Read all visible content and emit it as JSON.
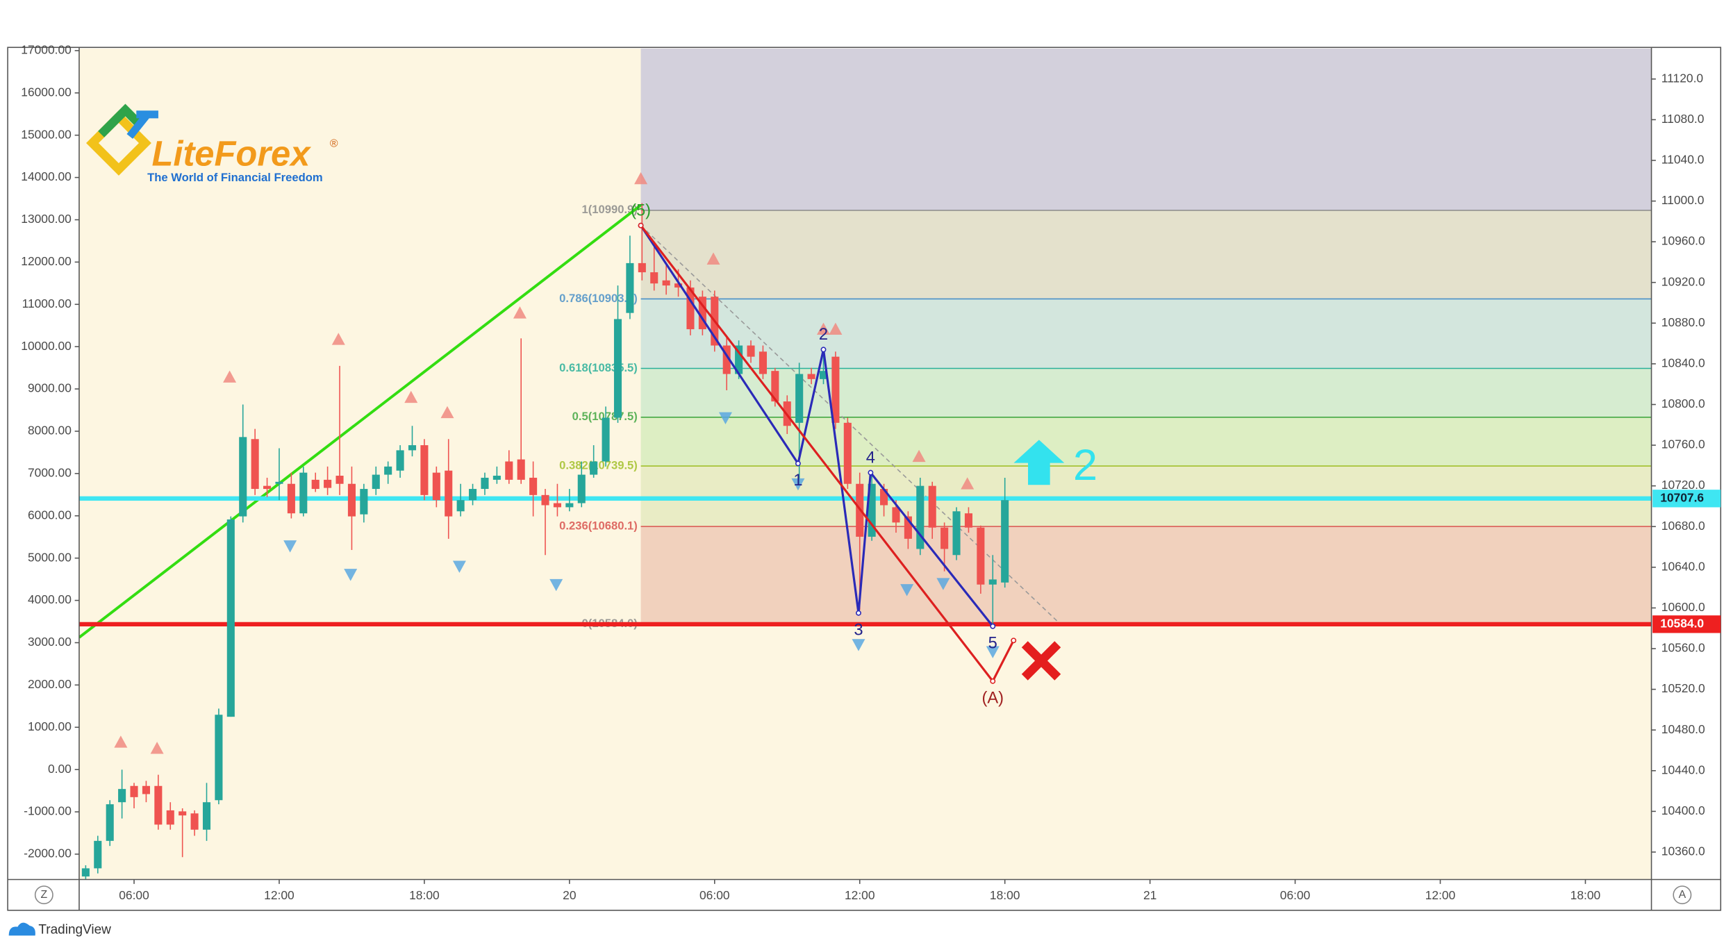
{
  "chart_data": {
    "type": "candlestick",
    "xlim": [
      3.73,
      68.73
    ],
    "xticks": [
      {
        "value": 6,
        "label": "06:00"
      },
      {
        "value": 12,
        "label": "12:00"
      },
      {
        "value": 18,
        "label": "18:00"
      },
      {
        "value": 24,
        "label": "20"
      },
      {
        "value": 30,
        "label": "06:00"
      },
      {
        "value": 36,
        "label": "12:00"
      },
      {
        "value": 42,
        "label": "18:00"
      },
      {
        "value": 48,
        "label": "21"
      },
      {
        "value": 54,
        "label": "06:00"
      },
      {
        "value": 60,
        "label": "12:00"
      },
      {
        "value": 66,
        "label": "18:00"
      }
    ],
    "ylim": [
      -2600,
      17050
    ],
    "yticks": [
      {
        "value": 17000,
        "label": "17000.00"
      },
      {
        "value": 16000,
        "label": "16000.00"
      },
      {
        "value": 15000,
        "label": "15000.00"
      },
      {
        "value": 14000,
        "label": "14000.00"
      },
      {
        "value": 13000,
        "label": "13000.00"
      },
      {
        "value": 12000,
        "label": "12000.00"
      },
      {
        "value": 11000,
        "label": "11000.00"
      },
      {
        "value": 10000,
        "label": "10000.00"
      },
      {
        "value": 9000,
        "label": "9000.00"
      },
      {
        "value": 8000,
        "label": "8000.00"
      },
      {
        "value": 7000,
        "label": "7000.00"
      },
      {
        "value": 6000,
        "label": "6000.00"
      },
      {
        "value": 5000,
        "label": "5000.00"
      },
      {
        "value": 4000,
        "label": "4000.00"
      },
      {
        "value": 3000,
        "label": "3000.00"
      },
      {
        "value": 2000,
        "label": "2000.00"
      },
      {
        "value": 1000,
        "label": "1000.00"
      },
      {
        "value": 0,
        "label": "0.00"
      },
      {
        "value": -1000,
        "label": "-1000.00"
      },
      {
        "value": -2000,
        "label": "-2000.00"
      }
    ],
    "y2lim": [
      10333,
      11150
    ],
    "y2ticks": [
      {
        "value": 11120,
        "label": "11120.0"
      },
      {
        "value": 11080,
        "label": "11080.0"
      },
      {
        "value": 11040,
        "label": "11040.0"
      },
      {
        "value": 11000,
        "label": "11000.0"
      },
      {
        "value": 10960,
        "label": "10960.0"
      },
      {
        "value": 10920,
        "label": "10920.0"
      },
      {
        "value": 10880,
        "label": "10880.0"
      },
      {
        "value": 10840,
        "label": "10840.0"
      },
      {
        "value": 10800,
        "label": "10800.0"
      },
      {
        "value": 10760,
        "label": "10760.0"
      },
      {
        "value": 10720,
        "label": "10720.0"
      },
      {
        "value": 10680,
        "label": "10680.0"
      },
      {
        "value": 10640,
        "label": "10640.0"
      },
      {
        "value": 10600,
        "label": "10600.0"
      },
      {
        "value": 10560,
        "label": "10560.0"
      },
      {
        "value": 10520,
        "label": "10520.0"
      },
      {
        "value": 10480,
        "label": "10480.0"
      },
      {
        "value": 10440,
        "label": "10440.0"
      },
      {
        "value": 10400,
        "label": "10400.0"
      },
      {
        "value": 10360,
        "label": "10360.0"
      }
    ],
    "series": [
      {
        "axis": "y2",
        "up_color": "#26a69a",
        "down_color": "#ef5350",
        "x": [
          4,
          4.5,
          5,
          5.5,
          6,
          6.5,
          7,
          7.5,
          8,
          8.5,
          9,
          9.5,
          10,
          10.5,
          11,
          11.5,
          12,
          12.5,
          13,
          13.5,
          14,
          14.5,
          15,
          15.5,
          16,
          16.5,
          17,
          17.5,
          18,
          18.5,
          19,
          19.5,
          20,
          20.5,
          21,
          21.5,
          22,
          22.5,
          23,
          23.5,
          24,
          24.5,
          25,
          25.5,
          26,
          26.5,
          27,
          27.5,
          28,
          28.5,
          29,
          29.5,
          30,
          30.5,
          31,
          31.5,
          32,
          32.5,
          33,
          33.5,
          34,
          34.5,
          35,
          35.5,
          36,
          36.5,
          37,
          37.5,
          38,
          38.5,
          39,
          39.5,
          40,
          40.5,
          41,
          41.5,
          42
        ],
        "open": [
          10336,
          10344,
          10371,
          10409,
          10425,
          10425,
          10425,
          10401,
          10400,
          10398,
          10382,
          10411,
          10493,
          10690,
          10766,
          10720,
          10722,
          10722,
          10693,
          10726,
          10726,
          10730,
          10722,
          10692,
          10717,
          10731,
          10735,
          10755,
          10760,
          10733,
          10735,
          10695,
          10706,
          10717,
          10726,
          10744,
          10746,
          10728,
          10711,
          10703,
          10699,
          10703,
          10731,
          10744,
          10787,
          10890,
          10939,
          10930,
          10922,
          10919,
          10915,
          10906,
          10906,
          10858,
          10830,
          10858,
          10852,
          10833,
          10803,
          10782,
          10830,
          10825,
          10847,
          10782,
          10722,
          10670,
          10717,
          10699,
          10690,
          10658,
          10720,
          10679,
          10652,
          10693,
          10679,
          10623,
          10625
        ],
        "high": [
          10347,
          10376,
          10411,
          10441,
          10428,
          10430,
          10436,
          10409,
          10403,
          10401,
          10428,
          10501,
          10690,
          10800,
          10776,
          10728,
          10757,
          10733,
          10739,
          10733,
          10739,
          10838,
          10739,
          10722,
          10739,
          10744,
          10760,
          10779,
          10766,
          10739,
          10766,
          10722,
          10722,
          10733,
          10739,
          10755,
          10865,
          10744,
          10717,
          10722,
          10717,
          10744,
          10760,
          10798,
          10917,
          10966,
          10998,
          10955,
          10939,
          10933,
          10922,
          10912,
          10912,
          10868,
          10863,
          10863,
          10858,
          10836,
          10809,
          10841,
          10836,
          10852,
          10852,
          10787,
          10733,
          10733,
          10722,
          10706,
          10695,
          10728,
          10724,
          10684,
          10699,
          10699,
          10681,
          10652,
          10728
        ],
        "low": [
          10333,
          10339,
          10366,
          10393,
          10403,
          10409,
          10382,
          10382,
          10355,
          10376,
          10371,
          10407,
          10493,
          10684,
          10711,
          10709,
          10706,
          10688,
          10690,
          10714,
          10711,
          10711,
          10657,
          10684,
          10711,
          10722,
          10728,
          10749,
          10706,
          10699,
          10668,
          10690,
          10701,
          10711,
          10722,
          10722,
          10722,
          10690,
          10652,
          10690,
          10695,
          10699,
          10728,
          10739,
          10782,
          10884,
          10922,
          10912,
          10908,
          10906,
          10868,
          10868,
          10852,
          10814,
          10825,
          10841,
          10825,
          10798,
          10771,
          10722,
          10820,
          10820,
          10776,
          10717,
          10598,
          10666,
          10690,
          10674,
          10658,
          10652,
          10668,
          10636,
          10647,
          10674,
          10614,
          10582,
          10620
        ],
        "close": [
          10344,
          10371,
          10407,
          10422,
          10414,
          10417,
          10387,
          10387,
          10396,
          10382,
          10409,
          10495,
          10687,
          10768,
          10717,
          10717,
          10724,
          10693,
          10733,
          10717,
          10718,
          10722,
          10690,
          10717,
          10731,
          10739,
          10755,
          10760,
          10711,
          10706,
          10690,
          10706,
          10717,
          10728,
          10730,
          10726,
          10726,
          10711,
          10701,
          10699,
          10703,
          10731,
          10744,
          10787,
          10884,
          10939,
          10930,
          10919,
          10917,
          10915,
          10874,
          10874,
          10858,
          10830,
          10858,
          10847,
          10830,
          10803,
          10779,
          10830,
          10825,
          10833,
          10782,
          10722,
          10670,
          10722,
          10701,
          10684,
          10668,
          10720,
          10679,
          10658,
          10695,
          10679,
          10623,
          10628,
          10706
        ]
      }
    ],
    "fib": {
      "x_start": 26.95,
      "top_color": "#d3d0dc",
      "levels": [
        {
          "value": 10990.9,
          "label": "1(10990.9)",
          "color": "#8a8a8a",
          "zone": "#e4e1cc"
        },
        {
          "value": 10903.8,
          "label": "0.786(10903.8)",
          "color": "#4a90c8",
          "zone": "#d3e6dd"
        },
        {
          "value": 10835.5,
          "label": "0.618(10835.5)",
          "color": "#2ab09a",
          "zone": "#d6ecd0"
        },
        {
          "value": 10787.5,
          "label": "0.5(10787.5)",
          "color": "#43a843",
          "zone": "#ddeec3"
        },
        {
          "value": 10739.5,
          "label": "0.382(10739.5)",
          "color": "#a2c02a",
          "zone": "#e9ecc5"
        },
        {
          "value": 10680.1,
          "label": "0.236(10680.1)",
          "color": "#d9534f",
          "zone": "#f1d1bd"
        },
        {
          "value": 10584.0,
          "label": "0(10584.0)",
          "color": "#8a8a8a"
        }
      ]
    },
    "price_lines": [
      {
        "value": 10707.6,
        "label": "10707.6",
        "color": "#3fe6f2"
      },
      {
        "value": 10584.0,
        "label": "10584.0",
        "color": "#ee2020"
      }
    ],
    "trend_line": {
      "x": [
        3.73,
        26.95
      ],
      "values": [
        10571,
        10996
      ],
      "color": "#33dd11"
    },
    "dashed_line": {
      "x": [
        26.95,
        44.3
      ],
      "values": [
        10976,
        10584
      ],
      "color": "#999999"
    },
    "waves": [
      {
        "x": [
          26.95,
          33.45,
          34.5,
          35.95,
          36.45,
          41.5
        ],
        "values": [
          10976,
          10742,
          10854,
          10595,
          10733,
          10582
        ],
        "labels": [
          "(5)",
          "1",
          "2",
          "3",
          "4",
          "5"
        ],
        "color": "#2a2ab8",
        "label_color": "#22228a"
      },
      {
        "x": [
          26.95,
          41.5,
          42.36
        ],
        "values": [
          10976,
          10528,
          10568
        ],
        "labels": [
          null,
          "(A)",
          null
        ],
        "color": "#dd2020",
        "label_color": "#a02020"
      }
    ],
    "fractals_up": {
      "x": [
        5.45,
        6.95,
        9.95,
        14.45,
        17.45,
        18.95,
        21.95,
        26.95,
        29.95,
        34.5,
        35.0,
        38.45,
        40.45
      ],
      "values": [
        10468,
        10462,
        10827,
        10864,
        10807,
        10792,
        10890,
        11022,
        10943,
        10874,
        10874,
        10749,
        10722
      ],
      "color": "#f08a80"
    },
    "fractals_down": {
      "x": [
        12.45,
        14.95,
        19.45,
        23.45,
        30.45,
        33.45,
        35.95,
        37.95,
        39.45,
        41.5
      ],
      "values": [
        10661,
        10633,
        10641,
        10623,
        10787,
        10722,
        10564,
        10618,
        10624,
        10557
      ],
      "color": "#5ba8e0"
    },
    "signal_text": "2",
    "logo": {
      "name": "LiteForex",
      "mark": "®",
      "tagline": "The World of Financial Freedom"
    },
    "footer": "TradingView",
    "buttons": [
      "Z",
      "A"
    ]
  }
}
